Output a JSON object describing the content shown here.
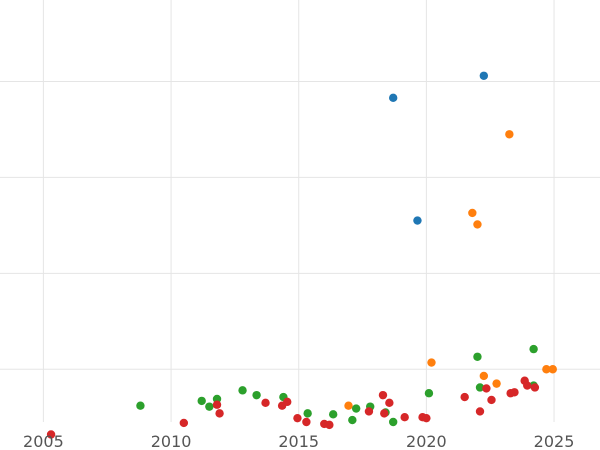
{
  "chart_data": {
    "type": "scatter",
    "title": "",
    "xlabel": "",
    "ylabel": "",
    "xlim": [
      2003.3,
      2026.8
    ],
    "ylim": [
      -0.55,
      3.85
    ],
    "x_ticks": [
      2005,
      2010,
      2015,
      2020,
      2025
    ],
    "x_tick_labels": [
      "2005",
      "2010",
      "2015",
      "2020",
      "2025"
    ],
    "y_gridlines": [
      0,
      1,
      2,
      3
    ],
    "y_tick_labels": [],
    "grid": true,
    "legend": "none",
    "series": [
      {
        "color": "#1f77b4",
        "points": [
          {
            "x": 2018.7,
            "y": 2.83
          },
          {
            "x": 2022.25,
            "y": 3.06
          },
          {
            "x": 2019.65,
            "y": 1.55
          }
        ]
      },
      {
        "color": "#ff7f0e",
        "points": [
          {
            "x": 2023.25,
            "y": 2.45
          },
          {
            "x": 2021.8,
            "y": 1.63
          },
          {
            "x": 2022.0,
            "y": 1.51
          },
          {
            "x": 2020.2,
            "y": 0.07
          },
          {
            "x": 2022.25,
            "y": -0.07
          },
          {
            "x": 2022.75,
            "y": -0.15
          },
          {
            "x": 2024.7,
            "y": 0.0
          },
          {
            "x": 2024.95,
            "y": 0.0
          },
          {
            "x": 2016.95,
            "y": -0.38
          }
        ]
      },
      {
        "color": "#2ca02c",
        "points": [
          {
            "x": 2008.8,
            "y": -0.38
          },
          {
            "x": 2011.2,
            "y": -0.33
          },
          {
            "x": 2011.5,
            "y": -0.39
          },
          {
            "x": 2011.8,
            "y": -0.31
          },
          {
            "x": 2012.8,
            "y": -0.22
          },
          {
            "x": 2013.35,
            "y": -0.27
          },
          {
            "x": 2014.4,
            "y": -0.29
          },
          {
            "x": 2015.35,
            "y": -0.46
          },
          {
            "x": 2016.35,
            "y": -0.47
          },
          {
            "x": 2017.1,
            "y": -0.53
          },
          {
            "x": 2017.25,
            "y": -0.41
          },
          {
            "x": 2017.8,
            "y": -0.39
          },
          {
            "x": 2018.4,
            "y": -0.45
          },
          {
            "x": 2018.7,
            "y": -0.55
          },
          {
            "x": 2020.1,
            "y": -0.25
          },
          {
            "x": 2022.0,
            "y": 0.13
          },
          {
            "x": 2022.1,
            "y": -0.19
          },
          {
            "x": 2024.2,
            "y": 0.21
          },
          {
            "x": 2024.2,
            "y": -0.17
          }
        ]
      },
      {
        "color": "#d62728",
        "points": [
          {
            "x": 2005.3,
            "y": -0.68
          },
          {
            "x": 2010.5,
            "y": -0.56
          },
          {
            "x": 2011.8,
            "y": -0.37
          },
          {
            "x": 2011.9,
            "y": -0.46
          },
          {
            "x": 2013.7,
            "y": -0.35
          },
          {
            "x": 2014.35,
            "y": -0.38
          },
          {
            "x": 2014.55,
            "y": -0.34
          },
          {
            "x": 2014.95,
            "y": -0.51
          },
          {
            "x": 2015.3,
            "y": -0.55
          },
          {
            "x": 2016.0,
            "y": -0.57
          },
          {
            "x": 2016.2,
            "y": -0.58
          },
          {
            "x": 2017.75,
            "y": -0.44
          },
          {
            "x": 2018.3,
            "y": -0.27
          },
          {
            "x": 2018.35,
            "y": -0.46
          },
          {
            "x": 2018.55,
            "y": -0.35
          },
          {
            "x": 2019.15,
            "y": -0.5
          },
          {
            "x": 2019.85,
            "y": -0.5
          },
          {
            "x": 2020.0,
            "y": -0.51
          },
          {
            "x": 2021.5,
            "y": -0.29
          },
          {
            "x": 2022.1,
            "y": -0.44
          },
          {
            "x": 2022.35,
            "y": -0.2
          },
          {
            "x": 2022.55,
            "y": -0.32
          },
          {
            "x": 2023.3,
            "y": -0.25
          },
          {
            "x": 2023.45,
            "y": -0.24
          },
          {
            "x": 2023.85,
            "y": -0.12
          },
          {
            "x": 2023.95,
            "y": -0.17
          },
          {
            "x": 2024.25,
            "y": -0.19
          }
        ]
      }
    ]
  }
}
